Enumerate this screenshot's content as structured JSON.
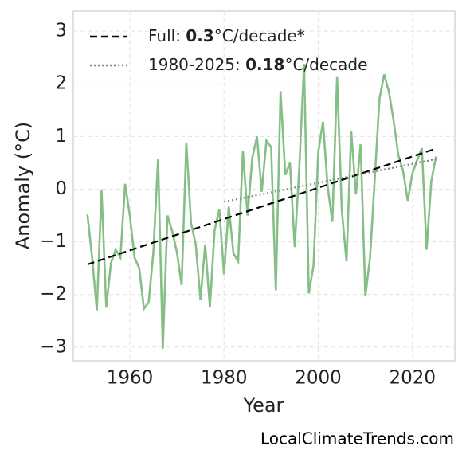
{
  "chart_data": {
    "type": "line",
    "xlabel": "Year",
    "ylabel": "Anomaly (°C)",
    "footer": "LocalClimateTrends.com",
    "xlim": [
      1948,
      2029
    ],
    "ylim": [
      -3.26,
      3.38
    ],
    "xticks": [
      1960,
      1980,
      2000,
      2020
    ],
    "yticks": [
      -3,
      -2,
      -1,
      0,
      1,
      2,
      3
    ],
    "grid": true,
    "legend": "upper left",
    "x": [
      1951,
      1952,
      1953,
      1954,
      1955,
      1956,
      1957,
      1958,
      1959,
      1960,
      1961,
      1962,
      1963,
      1964,
      1965,
      1966,
      1967,
      1968,
      1969,
      1970,
      1971,
      1972,
      1973,
      1974,
      1975,
      1976,
      1977,
      1978,
      1979,
      1980,
      1981,
      1982,
      1983,
      1984,
      1985,
      1986,
      1987,
      1988,
      1989,
      1990,
      1991,
      1992,
      1993,
      1994,
      1995,
      1996,
      1997,
      1998,
      1999,
      2000,
      2001,
      2002,
      2003,
      2004,
      2005,
      2006,
      2007,
      2008,
      2009,
      2010,
      2011,
      2012,
      2013,
      2014,
      2015,
      2016,
      2017,
      2018,
      2019,
      2020,
      2021,
      2022,
      2023,
      2024,
      2025
    ],
    "series": [
      {
        "color": "#86bf86",
        "style": "solid",
        "values": [
          -0.48,
          -1.3,
          -2.3,
          -0.02,
          -2.25,
          -1.4,
          -1.15,
          -1.3,
          0.1,
          -0.5,
          -1.3,
          -1.5,
          -2.27,
          -2.15,
          -1.2,
          0.58,
          -3.03,
          -0.5,
          -0.8,
          -1.2,
          -1.82,
          0.88,
          -0.65,
          -1.05,
          -2.1,
          -1.05,
          -2.25,
          -0.78,
          -0.38,
          -1.62,
          -0.33,
          -1.22,
          -1.37,
          0.72,
          -0.5,
          0.6,
          1.0,
          -0.05,
          0.92,
          0.8,
          -1.92,
          1.86,
          0.27,
          0.5,
          -1.1,
          0.45,
          2.38,
          -1.98,
          -1.45,
          0.7,
          1.28,
          0.05,
          -0.62,
          2.13,
          -0.4,
          -1.37,
          1.1,
          -0.1,
          0.85,
          -2.03,
          -1.3,
          0.2,
          1.72,
          2.18,
          1.85,
          1.3,
          0.65,
          0.35,
          -0.22,
          0.3,
          0.55,
          0.78,
          -1.15,
          0.15,
          0.62
        ]
      },
      {
        "name_parts": [
          "Full: ",
          0.3,
          "°C/decade*"
        ],
        "color": "#000000",
        "style": "dashed",
        "x": [
          1951,
          2025
        ],
        "values": [
          -1.43,
          0.77
        ]
      },
      {
        "name_parts": [
          "1980-2025: ",
          0.18,
          "°C/decade"
        ],
        "color": "#808080",
        "style": "dotted",
        "x": [
          1980,
          2025
        ],
        "values": [
          -0.24,
          0.57
        ]
      }
    ]
  }
}
